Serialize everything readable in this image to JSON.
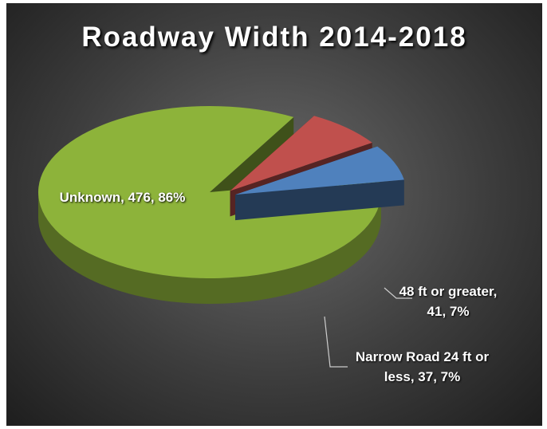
{
  "chart_data": {
    "type": "pie",
    "title": "Roadway Width 2014-2018",
    "values": [
      476,
      41,
      37
    ],
    "value_labels": [
      "Unknown, 476, 86%",
      "48 ft or greater, 41, 7%",
      "Narrow Road 24 ft or less, 37, 7%"
    ],
    "colors": [
      "#8db33a",
      "#c0504d",
      "#4f81bd"
    ]
  }
}
